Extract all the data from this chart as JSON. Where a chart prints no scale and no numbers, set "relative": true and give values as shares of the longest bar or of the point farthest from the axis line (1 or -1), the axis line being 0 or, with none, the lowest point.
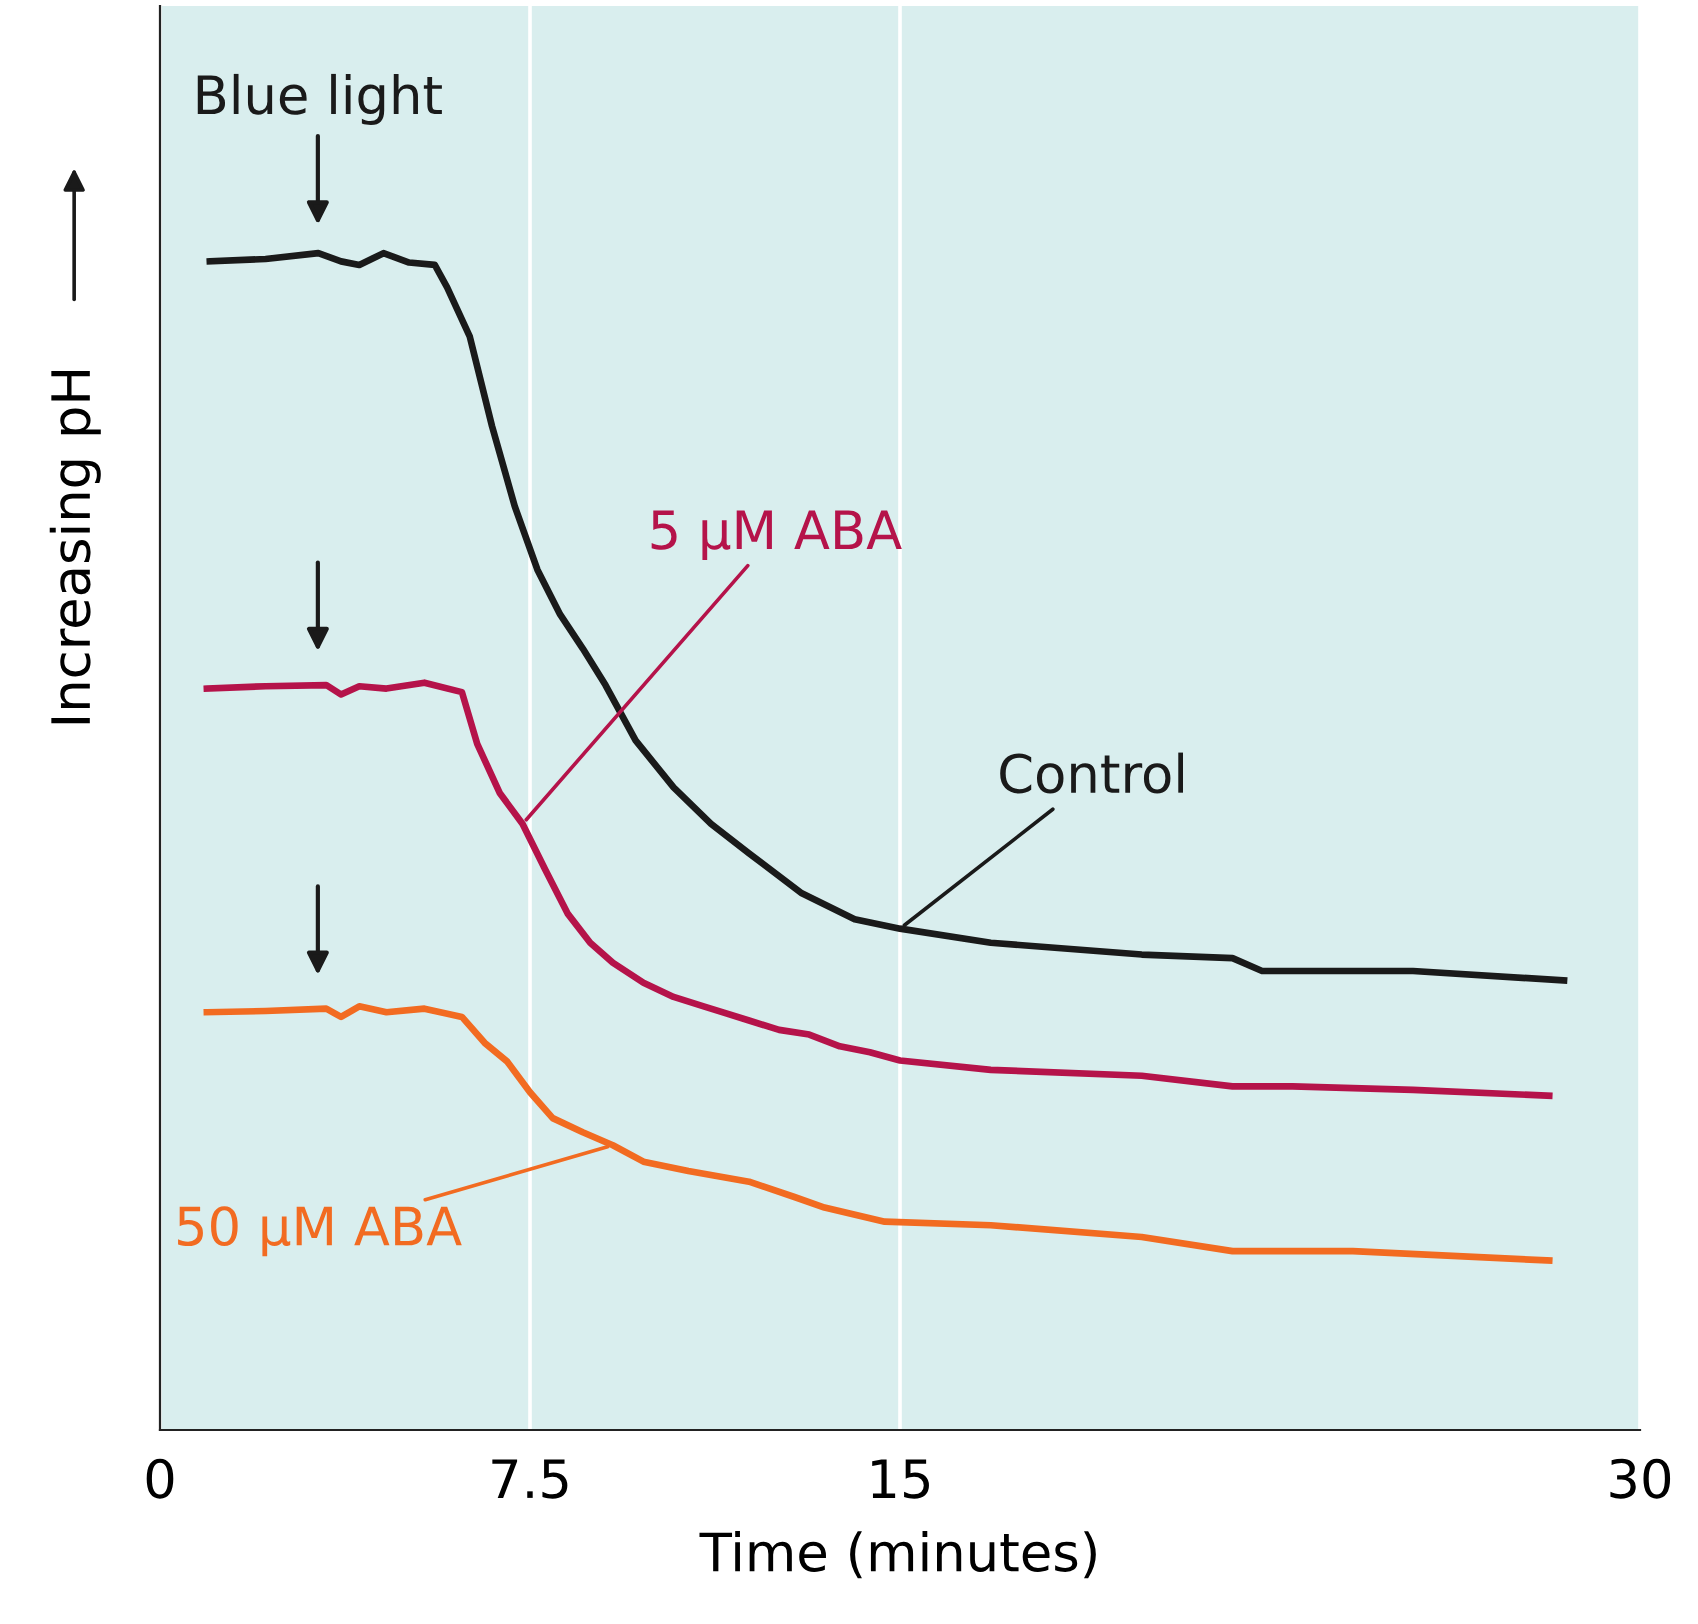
{
  "chart_data": {
    "type": "line",
    "xlabel": "Time (minutes)",
    "ylabel": "Increasing pH",
    "relative": true,
    "xlim": [
      0,
      30
    ],
    "xticks": [
      0,
      7.5,
      15,
      30
    ],
    "grid": "x",
    "legend": false,
    "marker": "none",
    "line_style": "solid",
    "annotations": [
      {
        "text": "Blue light",
        "x": 3.2,
        "y": 1.0
      }
    ],
    "series": [
      {
        "name": "Control",
        "color": "#1a1a1a",
        "x": [
          1.01,
          2.14,
          3.21,
          3.67,
          4.04,
          4.53,
          5.05,
          5.57,
          5.82,
          6.28,
          6.73,
          7.19,
          7.65,
          8.11,
          8.57,
          9.03,
          9.64,
          10.41,
          11.17,
          11.94,
          13.01,
          14.08,
          15.0,
          16.84,
          19.9,
          21.74,
          22.34,
          25.4,
          28.46
        ],
        "values": [
          0.993,
          0.995,
          1.0,
          0.993,
          0.99,
          1.0,
          0.992,
          0.99,
          0.971,
          0.929,
          0.853,
          0.785,
          0.731,
          0.693,
          0.664,
          0.633,
          0.586,
          0.546,
          0.515,
          0.49,
          0.456,
          0.434,
          0.426,
          0.414,
          0.404,
          0.401,
          0.39,
          0.39,
          0.382
        ]
      },
      {
        "name": "5 µM ABA",
        "color": "#b5134a",
        "x": [
          0.95,
          2.14,
          3.37,
          3.67,
          4.04,
          4.59,
          5.36,
          6.12,
          6.43,
          6.89,
          7.35,
          7.81,
          8.26,
          8.72,
          9.18,
          9.8,
          10.41,
          11.02,
          11.94,
          12.55,
          13.16,
          13.78,
          14.39,
          15.0,
          16.84,
          19.9,
          21.74,
          22.96,
          25.4,
          28.16
        ],
        "values": [
          0.63,
          0.632,
          0.633,
          0.625,
          0.632,
          0.63,
          0.635,
          0.627,
          0.583,
          0.541,
          0.515,
          0.476,
          0.439,
          0.414,
          0.397,
          0.38,
          0.368,
          0.36,
          0.348,
          0.34,
          0.336,
          0.326,
          0.321,
          0.314,
          0.306,
          0.301,
          0.292,
          0.292,
          0.289,
          0.284
        ]
      },
      {
        "name": "50 µM ABA",
        "color": "#f26b21",
        "x": [
          0.95,
          2.14,
          3.37,
          3.67,
          4.04,
          4.59,
          5.36,
          6.12,
          6.58,
          7.04,
          7.5,
          7.96,
          8.57,
          9.18,
          9.8,
          10.71,
          11.94,
          12.86,
          13.47,
          14.69,
          16.84,
          19.9,
          21.74,
          24.18,
          28.16
        ],
        "values": [
          0.355,
          0.356,
          0.358,
          0.351,
          0.36,
          0.355,
          0.358,
          0.351,
          0.329,
          0.313,
          0.287,
          0.265,
          0.253,
          0.242,
          0.228,
          0.22,
          0.211,
          0.198,
          0.189,
          0.177,
          0.174,
          0.164,
          0.152,
          0.152,
          0.144
        ]
      }
    ]
  }
}
